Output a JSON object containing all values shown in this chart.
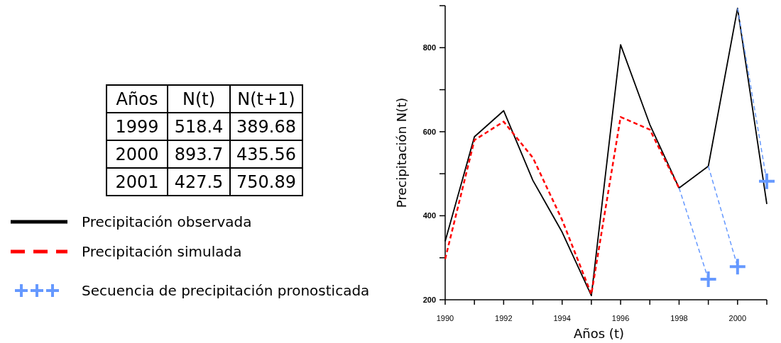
{
  "chart_data": [
    {
      "type": "other",
      "xlabel": "Años",
      "categories": [
        "1999",
        "2000",
        "2001"
      ],
      "data_labels": true,
      "series": [
        {
          "name": "N(t)",
          "values": [
            518.4,
            893.7,
            427.5
          ]
        },
        {
          "name": "N(t+1)",
          "values": [
            389.68,
            435.56,
            750.89
          ]
        }
      ]
    },
    {
      "type": "line",
      "xlabel": "Años (t)",
      "ylabel": "Precipitación N(t)",
      "xlim": [
        1990,
        2001
      ],
      "ylim": [
        200,
        900
      ],
      "xticks": [
        1990,
        {
          "value": 1991,
          "label": null
        },
        1992,
        {
          "value": 1993,
          "label": null
        },
        1994,
        {
          "value": 1995,
          "label": null
        },
        1996,
        {
          "value": 1997,
          "label": null
        },
        1998,
        {
          "value": 1999,
          "label": null
        },
        2000,
        {
          "value": 2001,
          "label": null
        }
      ],
      "yticks": [
        200,
        {
          "value": 300,
          "label": null
        },
        400,
        {
          "value": 500,
          "label": null
        },
        600,
        {
          "value": 700,
          "label": null
        },
        800
      ],
      "grid": false,
      "legend": "left",
      "series": [
        {
          "name": "Precipitación observada",
          "color": "#000000",
          "line_style": "solid",
          "x": [
            1990,
            1991,
            1992,
            1993,
            1994,
            1995,
            1996,
            1997,
            1998,
            1999,
            2000,
            2001
          ],
          "values": [
            339,
            588,
            650,
            484,
            361,
            210,
            807,
            617,
            466,
            518,
            894,
            428
          ]
        },
        {
          "name": "Precipitación simulada",
          "color": "#ff0000",
          "line_style": "dashed",
          "x": [
            1990,
            1991,
            1992,
            1993,
            1994,
            1995,
            1996,
            1997,
            1998
          ],
          "values": [
            297,
            580,
            624,
            538,
            390,
            213,
            635,
            605,
            466
          ]
        },
        {
          "name": "Secuencia de precipitación pronosticada",
          "type": "scatter",
          "marker": "cross",
          "color": "#6699ff",
          "x": [
            1999,
            2000,
            2001
          ],
          "values": [
            249,
            279,
            482
          ]
        },
        {
          "color": "#6699ff",
          "line_style": "dashed",
          "x": [
            1998,
            1999
          ],
          "values": [
            466,
            249
          ]
        },
        {
          "color": "#6699ff",
          "line_style": "dashed",
          "x": [
            1999,
            2000
          ],
          "values": [
            518,
            279
          ]
        },
        {
          "color": "#6699ff",
          "line_style": "dashed",
          "x": [
            2000,
            2001
          ],
          "values": [
            894,
            482
          ]
        }
      ]
    }
  ]
}
